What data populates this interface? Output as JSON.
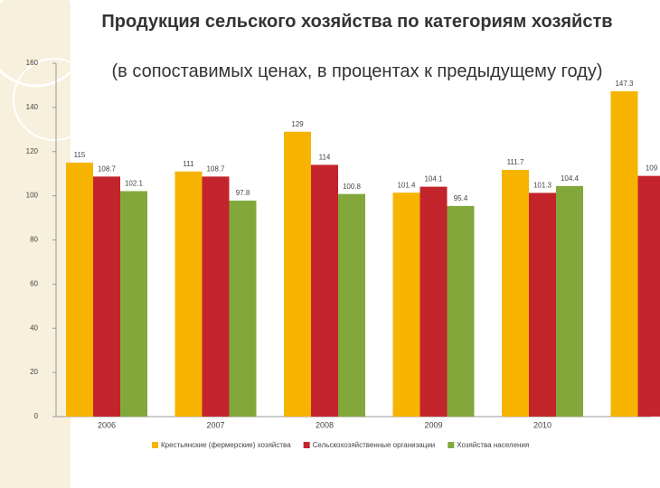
{
  "chart_data": {
    "type": "bar",
    "title": "Продукция сельского хозяйства по категориям хозяйств",
    "subtitle": "(в сопоставимых ценах, в процентах к предыдущему году)",
    "categories": [
      "2006",
      "2007",
      "2008",
      "2009",
      "2010",
      null
    ],
    "series": [
      {
        "name": "Крестьянские (фермерские) хозяйства",
        "color": "#f6b400",
        "values": [
          115,
          111,
          129,
          101.4,
          111.7,
          147.3
        ]
      },
      {
        "name": "Сельскохозяйственные организации",
        "color": "#c3242c",
        "values": [
          108.7,
          108.7,
          114,
          104.1,
          101.3,
          109
        ]
      },
      {
        "name": "Хозяйства населения",
        "color": "#82a83c",
        "values": [
          102.1,
          97.8,
          100.8,
          95.4,
          104.4,
          null
        ]
      }
    ],
    "ylim": [
      0,
      160
    ],
    "yticks": [
      0,
      20,
      40,
      60,
      80,
      100,
      120,
      140,
      160
    ],
    "grid": false
  }
}
